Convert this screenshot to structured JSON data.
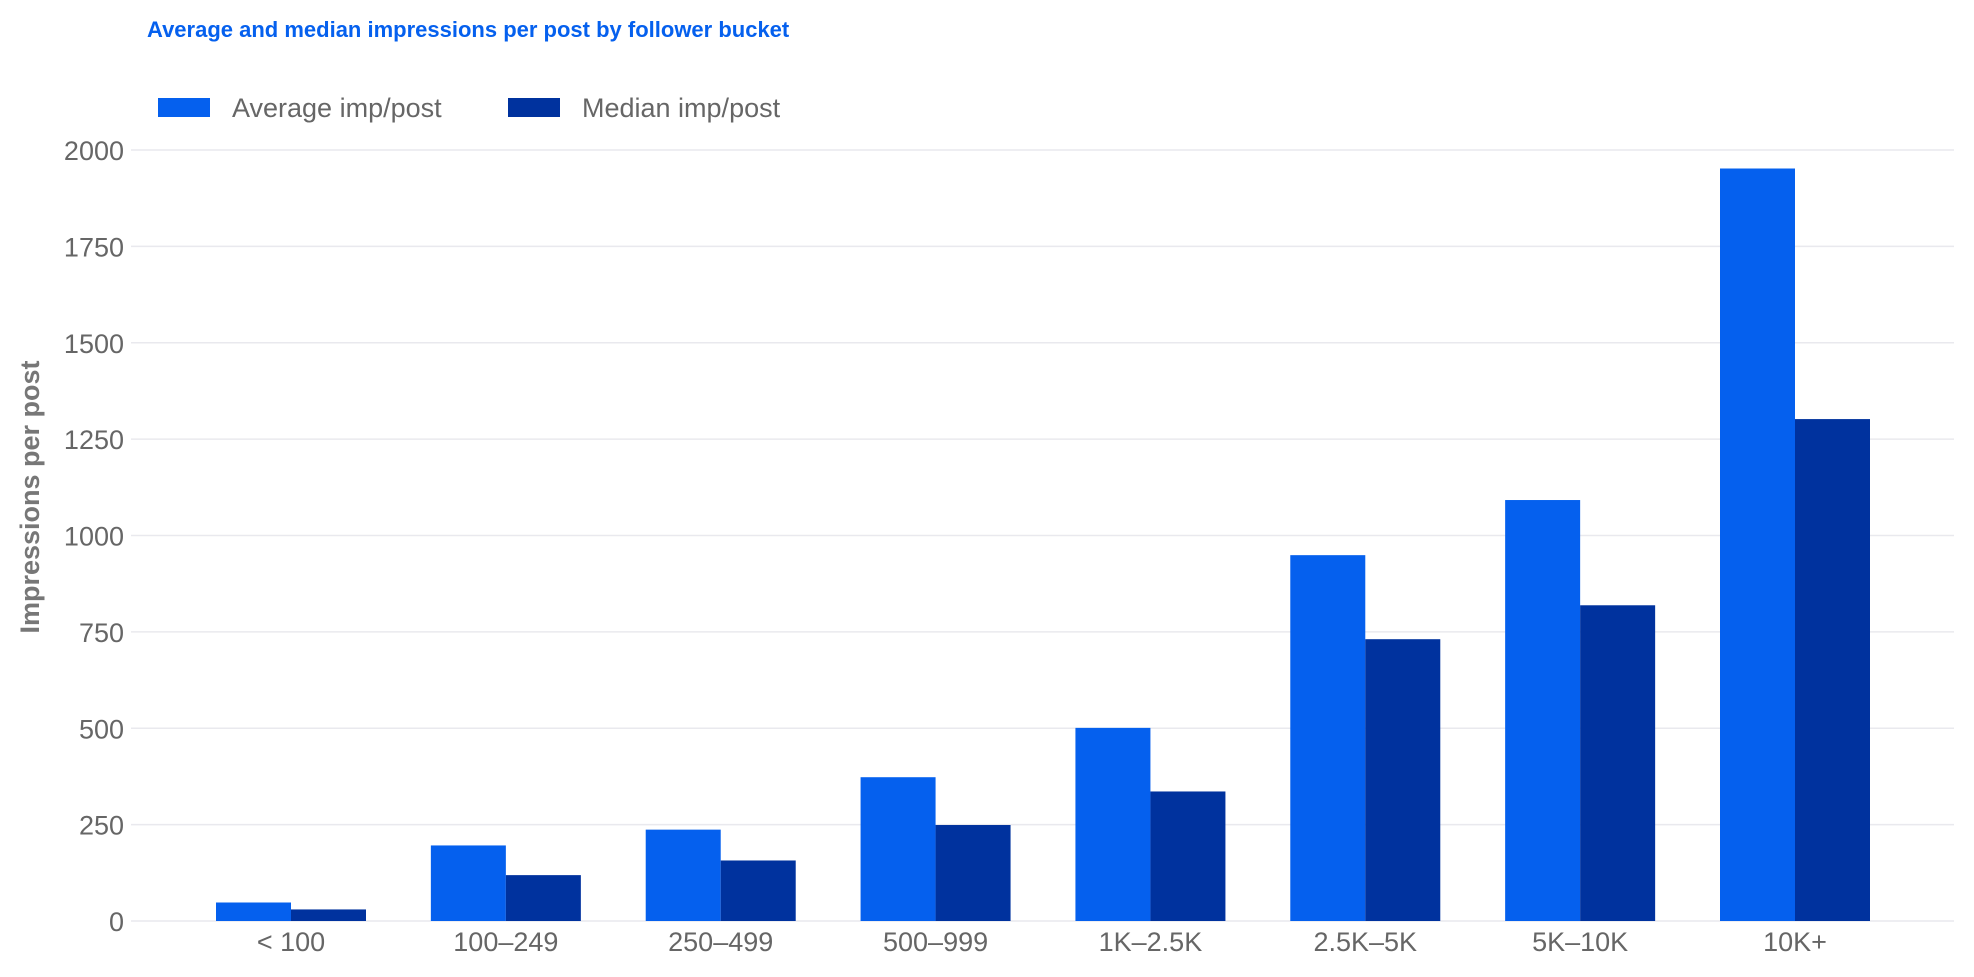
{
  "chart_data": {
    "type": "bar",
    "title": "Average and median impressions per post by follower bucket",
    "ylabel": "Impressions per post",
    "xlabel": "",
    "categories": [
      "< 100",
      "100–249",
      "250–499",
      "500–999",
      "1K–2.5K",
      "2.5K–5K",
      "5K–10K",
      "10K+"
    ],
    "series": [
      {
        "name": "Average imp/post",
        "color": "#0560EE",
        "values": [
          48,
          196,
          237,
          373,
          501,
          949,
          1092,
          1952
        ]
      },
      {
        "name": "Median imp/post",
        "color": "#00329E",
        "values": [
          30,
          119,
          157,
          249,
          336,
          731,
          819,
          1302
        ]
      }
    ],
    "ylim": [
      0,
      2000
    ],
    "yticks": [
      0,
      250,
      500,
      750,
      1000,
      1250,
      1500,
      1750,
      2000
    ],
    "grid": true,
    "legend_position": "top-left",
    "title_color": "#0560EE"
  }
}
